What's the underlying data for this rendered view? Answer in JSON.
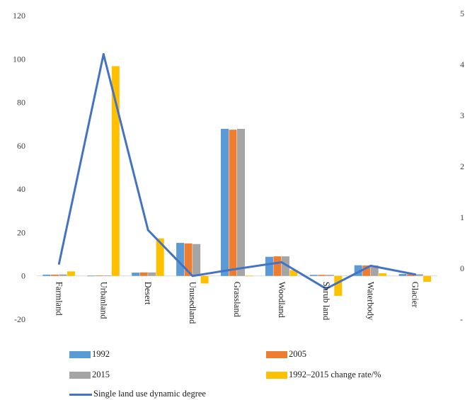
{
  "chart_data": {
    "type": "bar",
    "categories": [
      "Farmland",
      "Urbanland",
      "Desert",
      "Unusedland",
      "Grassland",
      "Woodland",
      "Shrub land",
      "Waterbody",
      "Glacier"
    ],
    "series": [
      {
        "name": "1992",
        "type": "bar",
        "axis": "left",
        "color": "#5B9BD5",
        "values": [
          0.6,
          0.1,
          1.5,
          15.2,
          67.8,
          8.8,
          0.5,
          4.9,
          0.9
        ]
      },
      {
        "name": "2005",
        "type": "bar",
        "axis": "left",
        "color": "#ED7D31",
        "values": [
          0.6,
          0.2,
          1.6,
          15.0,
          67.4,
          9.0,
          0.5,
          4.8,
          0.8
        ]
      },
      {
        "name": "2015",
        "type": "bar",
        "axis": "left",
        "color": "#A5A5A5",
        "values": [
          0.7,
          0.2,
          1.6,
          14.7,
          67.8,
          9.0,
          0.5,
          4.8,
          0.8
        ]
      },
      {
        "name": "1992–2015 change rate/%",
        "type": "bar",
        "axis": "left",
        "color": "#FFC000",
        "values": [
          2.1,
          96.7,
          17.3,
          -3.5,
          0.1,
          2.7,
          -9.2,
          1.2,
          -2.7
        ]
      },
      {
        "name": "Single land use dynamic degree",
        "type": "line",
        "axis": "right",
        "color": "#4472C4",
        "values": [
          0.09,
          4.2,
          0.75,
          -0.15,
          -0.01,
          0.12,
          -0.4,
          0.05,
          -0.12
        ]
      }
    ],
    "y_left": {
      "ticks": [
        "120",
        "100",
        "80",
        "60",
        "40",
        "20",
        "0",
        "-20"
      ],
      "ylim": [
        -20,
        120
      ]
    },
    "y_right": {
      "ticks": [
        "5",
        "4",
        "3",
        "2",
        "1",
        "0",
        "-"
      ],
      "ylim": [
        -1,
        5
      ]
    },
    "legend_position": "bottom",
    "grid": false
  }
}
